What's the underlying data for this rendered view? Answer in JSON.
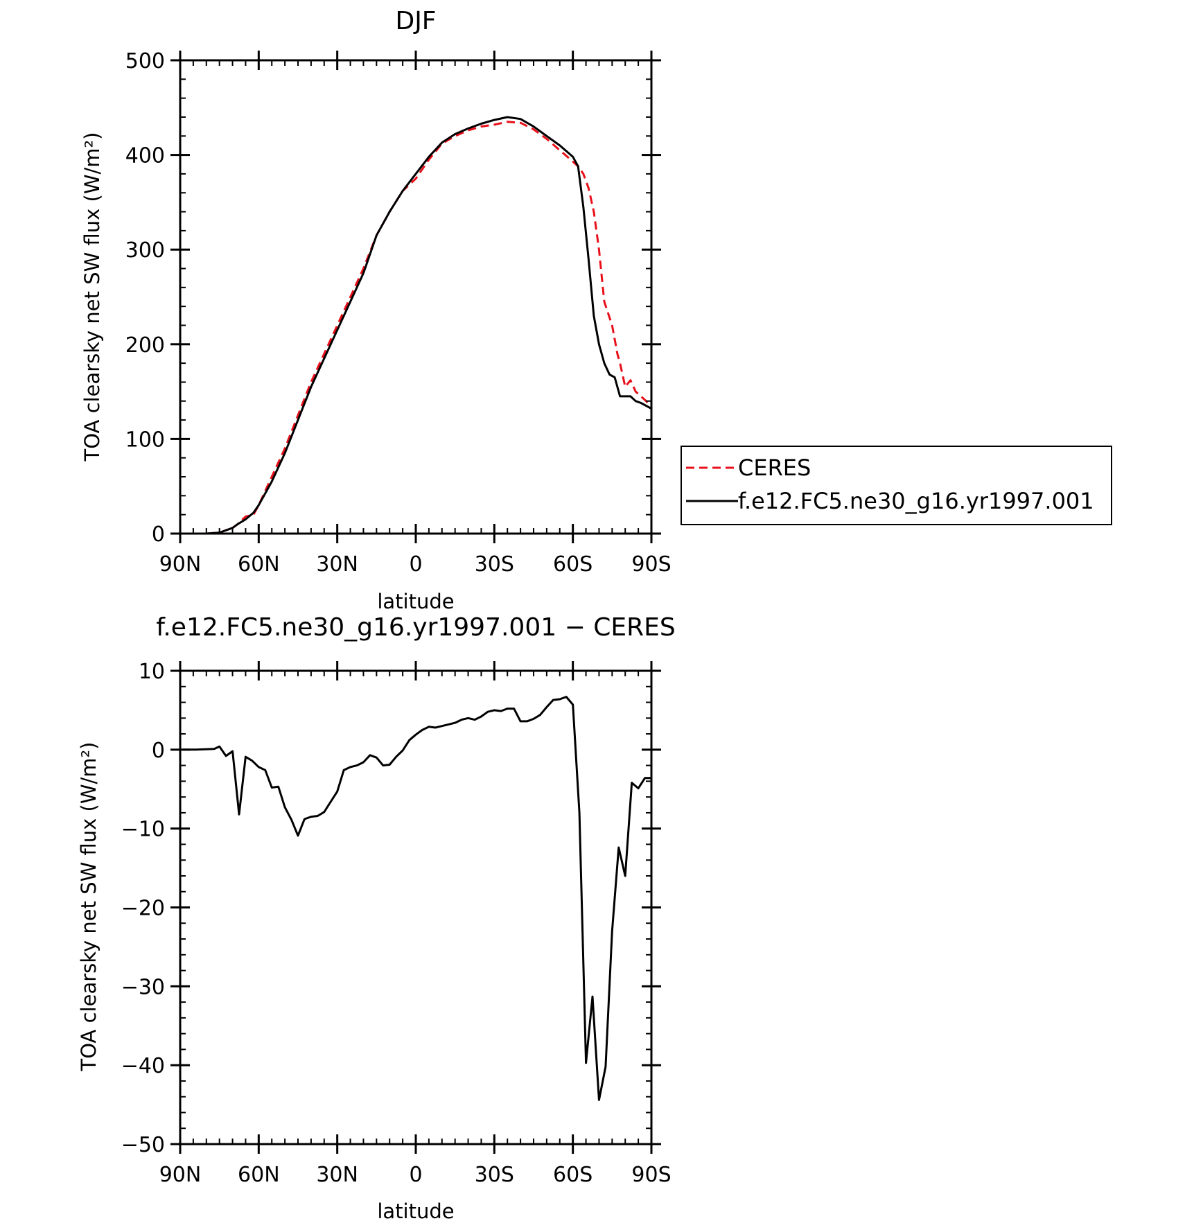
{
  "chart_data": [
    {
      "type": "line",
      "title": "DJF",
      "xlabel": "latitude",
      "ylabel": "TOA clearsky net SW flux (W/m²)",
      "xlim": [
        -90,
        90
      ],
      "ylim": [
        0,
        500
      ],
      "x_ticks": [
        -90,
        -60,
        -30,
        0,
        30,
        60,
        90
      ],
      "x_tick_labels": [
        "90N",
        "60N",
        "30N",
        "0",
        "30S",
        "60S",
        "90S"
      ],
      "y_ticks": [
        0,
        100,
        200,
        300,
        400,
        500
      ],
      "y_tick_labels": [
        "0",
        "100",
        "200",
        "300",
        "400",
        "500"
      ],
      "grid": false,
      "legend_position": "right",
      "series": [
        {
          "name": "CERES",
          "color": "#e8101a",
          "dash": "dashed",
          "x": [
            -90,
            -80,
            -75,
            -70,
            -68,
            -65,
            -62,
            -60,
            -55,
            -50,
            -45,
            -40,
            -35,
            -30,
            -25,
            -20,
            -15,
            -10,
            -5,
            0,
            5,
            10,
            15,
            20,
            25,
            30,
            35,
            40,
            45,
            50,
            55,
            60,
            62,
            64,
            66,
            68,
            70,
            72,
            75,
            77,
            78,
            80,
            82,
            84,
            86,
            88,
            90
          ],
          "y": [
            0,
            0,
            1,
            6,
            10,
            18,
            20,
            30,
            60,
            90,
            125,
            160,
            190,
            220,
            250,
            280,
            315,
            340,
            362,
            375,
            395,
            412,
            420,
            426,
            430,
            432,
            435,
            434,
            427,
            417,
            405,
            393,
            388,
            380,
            365,
            340,
            300,
            245,
            220,
            190,
            180,
            155,
            162,
            150,
            145,
            140,
            134
          ]
        },
        {
          "name": "f.e12.FC5.ne30_g16.yr1997.001",
          "color": "#000000",
          "dash": "solid",
          "x": [
            -90,
            -80,
            -75,
            -70,
            -68,
            -65,
            -62,
            -60,
            -55,
            -50,
            -45,
            -40,
            -35,
            -30,
            -25,
            -20,
            -15,
            -10,
            -5,
            0,
            5,
            10,
            15,
            20,
            25,
            30,
            35,
            40,
            45,
            50,
            55,
            60,
            62,
            64,
            66,
            68,
            70,
            72,
            74,
            76,
            78,
            80,
            82,
            84,
            86,
            88,
            90
          ],
          "y": [
            0,
            0,
            1,
            6,
            10,
            15,
            22,
            30,
            55,
            85,
            120,
            155,
            185,
            215,
            245,
            275,
            315,
            340,
            362,
            380,
            398,
            413,
            422,
            428,
            433,
            437,
            440,
            438,
            430,
            420,
            410,
            398,
            388,
            345,
            290,
            230,
            200,
            180,
            168,
            165,
            145,
            145,
            145,
            140,
            138,
            135,
            132
          ]
        }
      ]
    },
    {
      "type": "line",
      "title": "f.e12.FC5.ne30_g16.yr1997.001 − CERES",
      "xlabel": "latitude",
      "ylabel": "TOA clearsky net SW flux (W/m²)",
      "xlim": [
        -90,
        90
      ],
      "ylim": [
        -50,
        10
      ],
      "x_ticks": [
        -90,
        -60,
        -30,
        0,
        30,
        60,
        90
      ],
      "x_tick_labels": [
        "90N",
        "60N",
        "30N",
        "0",
        "30S",
        "60S",
        "90S"
      ],
      "y_ticks": [
        -50,
        -40,
        -30,
        -20,
        -10,
        0,
        10
      ],
      "y_tick_labels": [
        "−50",
        "−40",
        "−30",
        "−20",
        "−10",
        "0",
        "10"
      ],
      "grid": false,
      "series": [
        {
          "color": "#000000",
          "dash": "solid",
          "x": [
            -89,
            -84,
            -77,
            -75,
            -72.5,
            -70,
            -67.5,
            -65,
            -62.5,
            -60,
            -57.5,
            -55,
            -52.5,
            -50,
            -47.5,
            -45,
            -42.5,
            -40,
            -37.5,
            -35,
            -32.5,
            -30,
            -27.5,
            -25,
            -22.5,
            -20,
            -17.5,
            -15,
            -12.5,
            -10,
            -7.5,
            -5,
            -2.5,
            0,
            2.5,
            5,
            7.5,
            10,
            12.5,
            15,
            17.5,
            20,
            22.5,
            25,
            27.5,
            30,
            32.5,
            35,
            37.5,
            40,
            42.5,
            45,
            47.5,
            50,
            52.5,
            55,
            57.5,
            60,
            62.5,
            65,
            67.5,
            70,
            72.5,
            75,
            77.5,
            80,
            82.5,
            85,
            87.5,
            90
          ],
          "y": [
            0,
            0,
            0.1,
            0.4,
            -0.8,
            -0.2,
            -8.2,
            -0.9,
            -1.4,
            -2.2,
            -2.6,
            -4.8,
            -4.7,
            -7.3,
            -8.9,
            -10.9,
            -8.8,
            -8.5,
            -8.4,
            -7.9,
            -6.6,
            -5.3,
            -2.6,
            -2.2,
            -2.0,
            -1.6,
            -0.7,
            -1.0,
            -2.0,
            -1.9,
            -0.9,
            -0.1,
            1.2,
            1.9,
            2.5,
            2.9,
            2.8,
            3.0,
            3.2,
            3.4,
            3.8,
            4.0,
            3.8,
            4.2,
            4.8,
            5.0,
            4.9,
            5.2,
            5.2,
            3.6,
            3.6,
            3.9,
            4.4,
            5.4,
            6.3,
            6.4,
            6.7,
            5.7,
            -8.0,
            -39.7,
            -31.3,
            -44.4,
            -40.2,
            -23.0,
            -12.4,
            -16.0,
            -4.2,
            -4.9,
            -3.6,
            -3.6
          ]
        }
      ]
    }
  ]
}
